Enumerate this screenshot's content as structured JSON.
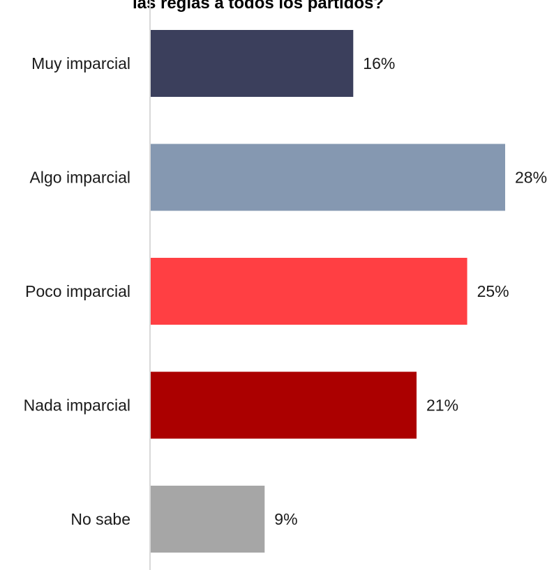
{
  "chart_data": {
    "type": "bar",
    "orientation": "horizontal",
    "title": "las reglas a todos los partidos?",
    "categories": [
      "Muy imparcial",
      "Algo imparcial",
      "Poco imparcial",
      "Nada imparcial",
      "No sabe"
    ],
    "values": [
      16,
      28,
      25,
      21,
      9
    ],
    "value_labels": [
      "16%",
      "28%",
      "25%",
      "21%",
      "9%"
    ],
    "colors": [
      "#3b3f5c",
      "#8598b1",
      "#ff3f43",
      "#ab0000",
      "#a6a6a6"
    ],
    "xlim": [
      0,
      28
    ],
    "grid": false,
    "legend": "none"
  }
}
